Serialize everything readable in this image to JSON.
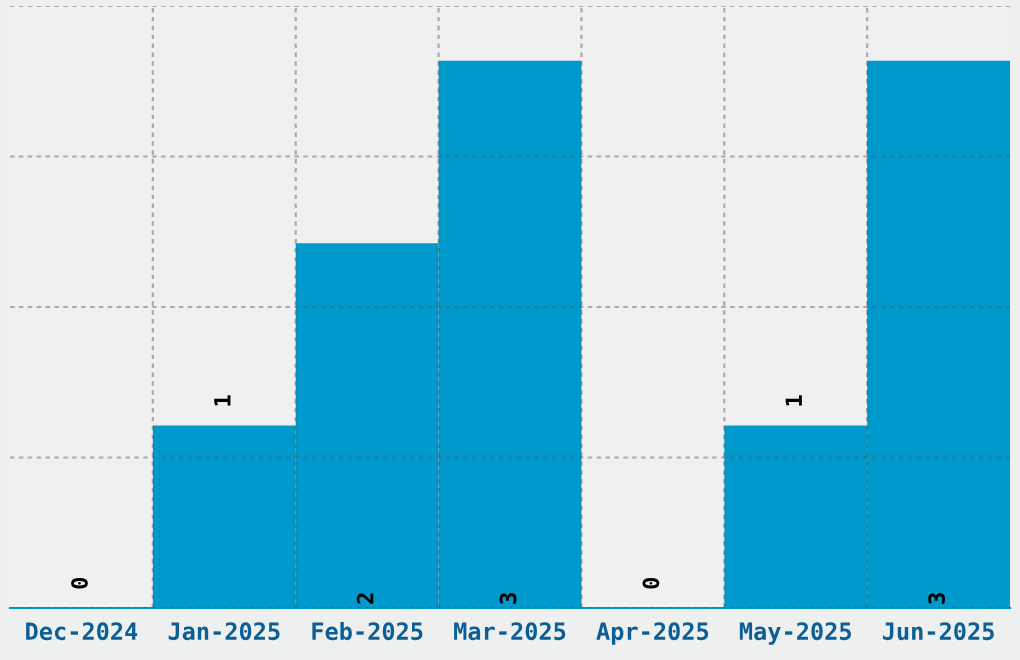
{
  "chart_data": {
    "type": "bar",
    "categories": [
      "Dec-2024",
      "Jan-2025",
      "Feb-2025",
      "Mar-2025",
      "Apr-2025",
      "May-2025",
      "Jun-2025"
    ],
    "values": [
      0,
      1,
      2,
      3,
      0,
      1,
      3
    ],
    "color": "#0099cc",
    "data_labels": true,
    "grid": true,
    "tick_labels": "x"
  }
}
